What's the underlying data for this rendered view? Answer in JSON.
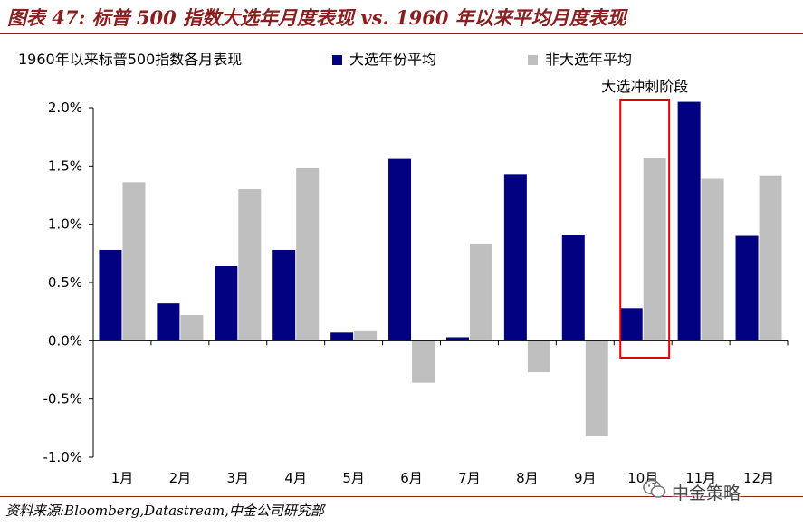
{
  "figure": {
    "title": "图表 47:  标普 500 指数大选年月度表现  vs. 1960 年以来平均月度表现",
    "source": "资料来源:Bloomberg,Datastream,中金公司研究部",
    "watermark": "中金策略",
    "accent_color": "#8a1f1f"
  },
  "chart_data": {
    "type": "bar",
    "title": "1960年以来标普500指数各月表现",
    "xlabel": "",
    "ylabel": "",
    "categories": [
      "1月",
      "2月",
      "3月",
      "4月",
      "5月",
      "6月",
      "7月",
      "8月",
      "9月",
      "10月",
      "11月",
      "12月"
    ],
    "series": [
      {
        "name": "大选年份平均",
        "color": "#000080",
        "values": [
          0.78,
          0.32,
          0.64,
          0.78,
          0.07,
          1.56,
          0.03,
          1.43,
          0.91,
          0.28,
          2.05,
          0.9
        ]
      },
      {
        "name": "非大选年平均",
        "color": "#bfbfbf",
        "values": [
          1.36,
          0.22,
          1.3,
          1.48,
          0.09,
          -0.36,
          0.83,
          -0.27,
          -0.82,
          1.57,
          1.39,
          1.42
        ]
      }
    ],
    "ylim": [
      -1.0,
      2.0
    ],
    "yticks": [
      -1.0,
      -0.5,
      0.0,
      0.5,
      1.0,
      1.5,
      2.0
    ],
    "ytick_labels": [
      "-1.0%",
      "-0.5%",
      "0.0%",
      "0.5%",
      "1.0%",
      "1.5%",
      "2.0%"
    ],
    "grid": false,
    "legend_position": "top",
    "annotation": {
      "label": "大选冲刺阶段",
      "category": "10月",
      "color": "#e00000"
    }
  }
}
